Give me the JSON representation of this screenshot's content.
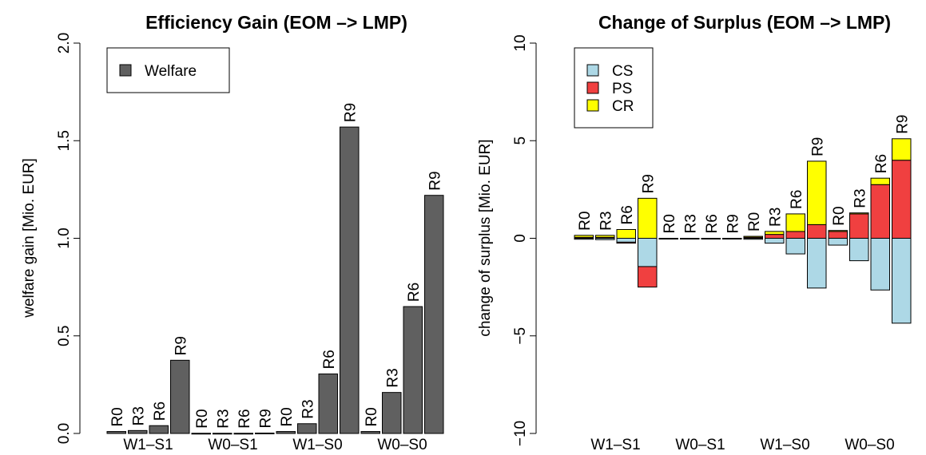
{
  "chart_data": [
    {
      "type": "bar",
      "title": "Efficiency Gain (EOM –> LMP)",
      "ylabel": "welfare gain [Mio. EUR]",
      "xlabel": "",
      "ylim": [
        0,
        2.0
      ],
      "yticks": [
        "0.0",
        "0.5",
        "1.0",
        "1.5",
        "2.0"
      ],
      "ytick_values": [
        0,
        0.5,
        1.0,
        1.5,
        2.0
      ],
      "groups": [
        "W1–S1",
        "W0–S1",
        "W1–S0",
        "W0–S0"
      ],
      "bar_labels": [
        "R0",
        "R3",
        "R6",
        "R9"
      ],
      "legend": {
        "position": "top-left",
        "entries": [
          "Welfare"
        ]
      },
      "colors": {
        "Welfare": "#606060"
      },
      "grid": false,
      "series": [
        {
          "name": "Welfare",
          "values": [
            [
              0.01,
              0.015,
              0.04,
              0.375
            ],
            [
              0.001,
              0.001,
              0.001,
              0.002
            ],
            [
              0.01,
              0.05,
              0.305,
              1.57
            ],
            [
              0.01,
              0.21,
              0.65,
              1.22
            ]
          ]
        }
      ]
    },
    {
      "type": "bar",
      "title": "Change of Surplus (EOM –> LMP)",
      "ylabel": "change of surplus [Mio. EUR]",
      "xlabel": "",
      "ylim": [
        -10,
        10
      ],
      "yticks": [
        "−10",
        "−5",
        "0",
        "5",
        "10"
      ],
      "ytick_values": [
        -10,
        -5,
        0,
        5,
        10
      ],
      "groups": [
        "W1–S1",
        "W0–S1",
        "W1–S0",
        "W0–S0"
      ],
      "bar_labels": [
        "R0",
        "R3",
        "R6",
        "R9"
      ],
      "legend": {
        "position": "top-left",
        "entries": [
          "CS",
          "PS",
          "CR"
        ]
      },
      "colors": {
        "CS": "#add8e6",
        "PS": "#f04040",
        "CR": "#ffff00"
      },
      "grid": false,
      "series": [
        {
          "name": "CS",
          "values": [
            [
              -0.05,
              -0.07,
              -0.2,
              -1.45
            ],
            [
              0,
              0,
              0,
              0
            ],
            [
              -0.05,
              -0.25,
              -0.8,
              -2.55
            ],
            [
              -0.35,
              -1.15,
              -2.65,
              -4.35
            ]
          ]
        },
        {
          "name": "PS",
          "values": [
            [
              0.05,
              0.05,
              -0.05,
              -1.05
            ],
            [
              0,
              0,
              0,
              0
            ],
            [
              0.05,
              0.2,
              0.35,
              0.7
            ],
            [
              0.35,
              1.25,
              2.75,
              4.0
            ]
          ]
        },
        {
          "name": "CR",
          "values": [
            [
              0.1,
              0.1,
              0.45,
              2.05
            ],
            [
              0,
              0,
              0,
              0
            ],
            [
              0.05,
              0.15,
              0.9,
              3.25
            ],
            [
              0.05,
              0.05,
              0.33,
              1.1
            ]
          ]
        }
      ]
    }
  ]
}
